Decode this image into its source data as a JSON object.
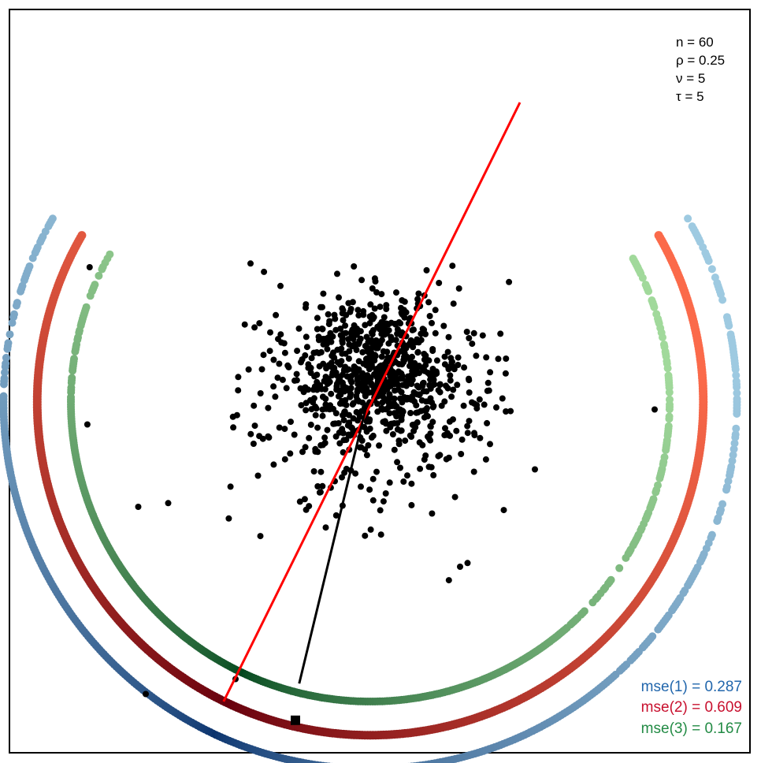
{
  "chart_data": {
    "type": "scatter",
    "title": "",
    "xlabel": "",
    "ylabel": "",
    "axes_shown": false,
    "grid": false,
    "frame": true,
    "parameters": [
      {
        "label": "n = 60"
      },
      {
        "label": "ρ = 0.25"
      },
      {
        "label": "ν = 5"
      },
      {
        "label": "τ = 5"
      }
    ],
    "mse_labels": [
      {
        "label": "mse(1) = 0.287",
        "color": "#2166ac"
      },
      {
        "label": "mse(2) = 0.609",
        "color": "#c8102e"
      },
      {
        "label": "mse(3) = 0.167",
        "color": "#238b45"
      }
    ],
    "lines": [
      {
        "name": "red-line",
        "color": "#ff0000",
        "from": [
          -1.96,
          -4.0
        ],
        "to": [
          2.0,
          4.0
        ]
      },
      {
        "name": "black-line",
        "color": "#000000",
        "from": [
          -0.95,
          -3.76
        ],
        "to": [
          -0.04,
          0.0
        ]
      }
    ],
    "square_marker": [
      -1.0,
      -4.25
    ],
    "colors": {
      "arc1_light": "#9ecae1",
      "arc1_dark": "#08306b",
      "arc2_light": "#fb6a4a",
      "arc2_dark": "#67000d",
      "arc3_light": "#a1d99b",
      "arc3_dark": "#00441b",
      "points": "#000000"
    },
    "arcs": [
      {
        "series": 1,
        "radius": 4.9,
        "start_deg": 150,
        "end_deg": 30,
        "gap": [
          -1,
          -1
        ]
      },
      {
        "series": 2,
        "radius": 4.45,
        "start_deg": 150,
        "end_deg": 30,
        "gap": [
          -1,
          -1
        ]
      },
      {
        "series": 3,
        "radius": 4.0,
        "start_deg": 150,
        "end_deg": 30,
        "gap": [
          139,
          117
        ]
      }
    ],
    "points": [
      [
        -3.75,
        1.8
      ],
      [
        -3.78,
        -0.3
      ],
      [
        3.8,
        -0.1
      ],
      [
        -1.8,
        -3.7
      ],
      [
        -3.0,
        -3.9
      ],
      [
        -2.7,
        -1.35
      ],
      [
        -3.1,
        -1.4
      ],
      [
        1.05,
        -2.38
      ],
      [
        1.2,
        -2.2
      ],
      [
        1.3,
        -2.15
      ],
      [
        2.2,
        -0.9
      ],
      [
        1.0,
        -0.35
      ],
      [
        0.55,
        1.05
      ],
      [
        -1.2,
        1.55
      ],
      [
        -1.6,
        1.85
      ]
    ]
  }
}
